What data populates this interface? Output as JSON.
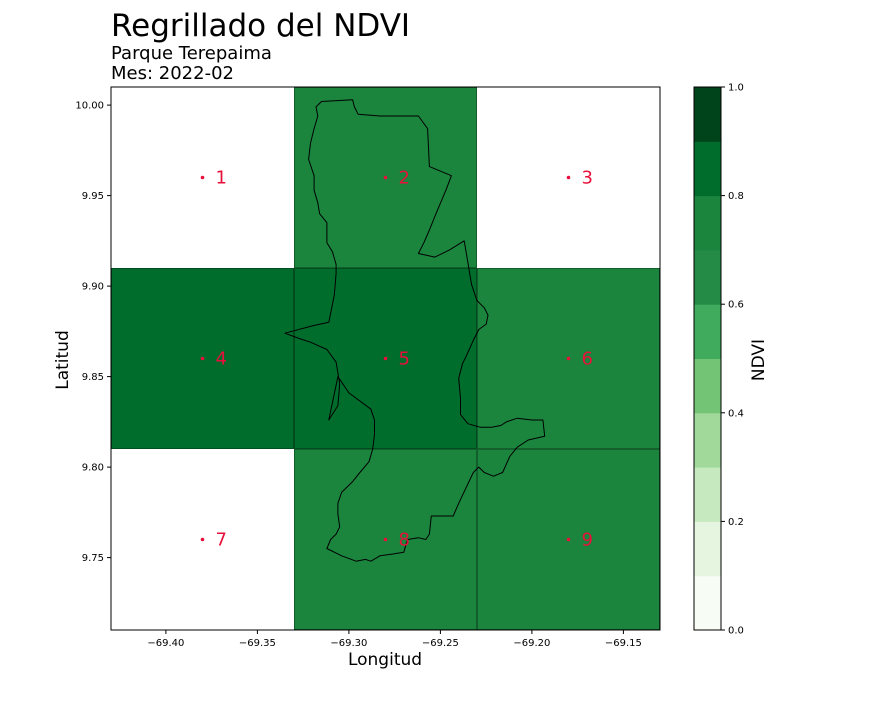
{
  "chart_data": {
    "type": "heatmap",
    "title": "Regrillado del NDVI",
    "subtitle_lines": [
      "Parque Terepaima",
      "Mes: 2022-02"
    ],
    "xlabel": "Longitud",
    "ylabel": "Latitud",
    "xlim": [
      -69.43,
      -69.13
    ],
    "ylim": [
      9.71,
      10.01
    ],
    "xticks": [
      -69.4,
      -69.35,
      -69.3,
      -69.25,
      -69.2,
      -69.15
    ],
    "xtick_labels": [
      "−69.40",
      "−69.35",
      "−69.30",
      "−69.25",
      "−69.20",
      "−69.15"
    ],
    "yticks": [
      9.75,
      9.8,
      9.85,
      9.9,
      9.95,
      10.0
    ],
    "ytick_labels": [
      "9.75",
      "9.80",
      "9.85",
      "9.90",
      "9.95",
      "10.00"
    ],
    "cells": [
      {
        "id": "1",
        "lon_min": -69.43,
        "lon_max": -69.33,
        "lat_min": 9.91,
        "lat_max": 10.01,
        "ndvi": null,
        "center_lon": -69.38,
        "center_lat": 9.96
      },
      {
        "id": "2",
        "lon_min": -69.33,
        "lon_max": -69.23,
        "lat_min": 9.91,
        "lat_max": 10.01,
        "ndvi": 0.75,
        "center_lon": -69.28,
        "center_lat": 9.96
      },
      {
        "id": "3",
        "lon_min": -69.23,
        "lon_max": -69.13,
        "lat_min": 9.91,
        "lat_max": 10.01,
        "ndvi": null,
        "center_lon": -69.18,
        "center_lat": 9.96
      },
      {
        "id": "4",
        "lon_min": -69.43,
        "lon_max": -69.33,
        "lat_min": 9.81,
        "lat_max": 9.91,
        "ndvi": 0.85,
        "center_lon": -69.38,
        "center_lat": 9.86
      },
      {
        "id": "5",
        "lon_min": -69.33,
        "lon_max": -69.23,
        "lat_min": 9.81,
        "lat_max": 9.91,
        "ndvi": 0.85,
        "center_lon": -69.28,
        "center_lat": 9.86
      },
      {
        "id": "6",
        "lon_min": -69.23,
        "lon_max": -69.13,
        "lat_min": 9.81,
        "lat_max": 9.91,
        "ndvi": 0.75,
        "center_lon": -69.18,
        "center_lat": 9.86
      },
      {
        "id": "7",
        "lon_min": -69.43,
        "lon_max": -69.33,
        "lat_min": 9.71,
        "lat_max": 9.81,
        "ndvi": null,
        "center_lon": -69.38,
        "center_lat": 9.76
      },
      {
        "id": "8",
        "lon_min": -69.33,
        "lon_max": -69.23,
        "lat_min": 9.71,
        "lat_max": 9.81,
        "ndvi": 0.75,
        "center_lon": -69.28,
        "center_lat": 9.76
      },
      {
        "id": "9",
        "lon_min": -69.23,
        "lon_max": -69.13,
        "lat_min": 9.71,
        "lat_max": 9.81,
        "ndvi": 0.75,
        "center_lon": -69.18,
        "center_lat": 9.76
      }
    ],
    "boundary": [
      [
        -69.315,
        10.002
      ],
      [
        -69.298,
        10.003
      ],
      [
        -69.297,
        9.999
      ],
      [
        -69.295,
        9.995
      ],
      [
        -69.283,
        9.994
      ],
      [
        -69.262,
        9.994
      ],
      [
        -69.257,
        9.987
      ],
      [
        -69.256,
        9.966
      ],
      [
        -69.244,
        9.961
      ],
      [
        -69.247,
        9.953
      ],
      [
        -69.252,
        9.941
      ],
      [
        -69.256,
        9.931
      ],
      [
        -69.259,
        9.924
      ],
      [
        -69.262,
        9.918
      ],
      [
        -69.253,
        9.916
      ],
      [
        -69.245,
        9.92
      ],
      [
        -69.237,
        9.925
      ],
      [
        -69.235,
        9.913
      ],
      [
        -69.233,
        9.901
      ],
      [
        -69.23,
        9.892
      ],
      [
        -69.226,
        9.888
      ],
      [
        -69.224,
        9.884
      ],
      [
        -69.225,
        9.879
      ],
      [
        -69.229,
        9.876
      ],
      [
        -69.232,
        9.87
      ],
      [
        -69.236,
        9.861
      ],
      [
        -69.238,
        9.857
      ],
      [
        -69.24,
        9.849
      ],
      [
        -69.239,
        9.838
      ],
      [
        -69.239,
        9.829
      ],
      [
        -69.235,
        9.824
      ],
      [
        -69.228,
        9.822
      ],
      [
        -69.222,
        9.822
      ],
      [
        -69.217,
        9.823
      ],
      [
        -69.214,
        9.825
      ],
      [
        -69.208,
        9.827
      ],
      [
        -69.2,
        9.826
      ],
      [
        -69.194,
        9.826
      ],
      [
        -69.193,
        9.817
      ],
      [
        -69.202,
        9.815
      ],
      [
        -69.208,
        9.811
      ],
      [
        -69.212,
        9.806
      ],
      [
        -69.216,
        9.797
      ],
      [
        -69.221,
        9.795
      ],
      [
        -69.226,
        9.797
      ],
      [
        -69.229,
        9.8
      ],
      [
        -69.232,
        9.797
      ],
      [
        -69.24,
        9.78
      ],
      [
        -69.243,
        9.773
      ],
      [
        -69.25,
        9.773
      ],
      [
        -69.255,
        9.773
      ],
      [
        -69.256,
        9.763
      ],
      [
        -69.258,
        9.76
      ],
      [
        -69.262,
        9.761
      ],
      [
        -69.268,
        9.76
      ],
      [
        -69.27,
        9.753
      ],
      [
        -69.276,
        9.752
      ],
      [
        -69.283,
        9.751
      ],
      [
        -69.288,
        9.748
      ],
      [
        -69.291,
        9.749
      ],
      [
        -69.296,
        9.748
      ],
      [
        -69.304,
        9.751
      ],
      [
        -69.312,
        9.755
      ],
      [
        -69.31,
        9.76
      ],
      [
        -69.307,
        9.763
      ],
      [
        -69.305,
        9.767
      ],
      [
        -69.306,
        9.774
      ],
      [
        -69.306,
        9.78
      ],
      [
        -69.304,
        9.786
      ],
      [
        -69.298,
        9.792
      ],
      [
        -69.294,
        9.797
      ],
      [
        -69.289,
        9.803
      ],
      [
        -69.287,
        9.81
      ],
      [
        -69.286,
        9.818
      ],
      [
        -69.286,
        9.826
      ],
      [
        -69.288,
        9.832
      ],
      [
        -69.3,
        9.841
      ],
      [
        -69.306,
        9.85
      ],
      [
        -69.311,
        9.826
      ],
      [
        -69.306,
        9.834
      ],
      [
        -69.305,
        9.846
      ],
      [
        -69.307,
        9.858
      ],
      [
        -69.312,
        9.865
      ],
      [
        -69.321,
        9.869
      ],
      [
        -69.327,
        9.871
      ],
      [
        -69.335,
        9.874
      ],
      [
        -69.32,
        9.878
      ],
      [
        -69.311,
        9.88
      ],
      [
        -69.308,
        9.895
      ],
      [
        -69.307,
        9.907
      ],
      [
        -69.307,
        9.912
      ],
      [
        -69.309,
        9.919
      ],
      [
        -69.312,
        9.924
      ],
      [
        -69.312,
        9.935
      ],
      [
        -69.316,
        9.94
      ],
      [
        -69.317,
        9.946
      ],
      [
        -69.319,
        9.953
      ],
      [
        -69.319,
        9.961
      ],
      [
        -69.322,
        9.97
      ],
      [
        -69.321,
        9.979
      ],
      [
        -69.319,
        9.987
      ],
      [
        -69.317,
        9.994
      ],
      [
        -69.318,
        9.999
      ],
      [
        -69.315,
        10.002
      ]
    ],
    "colorbar": {
      "label": "NDVI",
      "range": [
        0.0,
        1.0
      ],
      "ticks": [
        0.0,
        0.2,
        0.4,
        0.6,
        0.8,
        1.0
      ],
      "tick_labels": [
        "0.0",
        "0.2",
        "0.4",
        "0.6",
        "0.8",
        "1.0"
      ],
      "levels": 10,
      "colors": [
        "#f7fcf5",
        "#e5f5e0",
        "#c7e9c0",
        "#a1d99b",
        "#74c476",
        "#41ab5d",
        "#238b45",
        "#1b853e",
        "#006d2c",
        "#00441b"
      ]
    },
    "colors": {
      "cell_labels": "#e8103a",
      "boundary": "#000000"
    }
  }
}
